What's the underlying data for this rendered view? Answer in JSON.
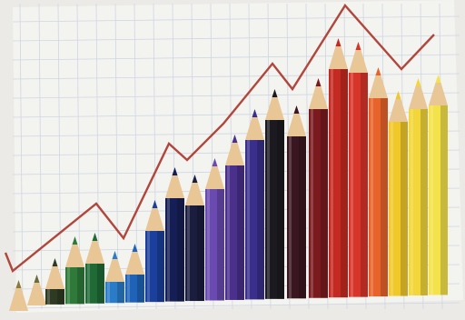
{
  "scene": {
    "paper_color": "#f3f3f0",
    "grid_color": "#cfd6e2",
    "line_color": "#b0463c",
    "wood_color": "#e8c695",
    "edge_color": "#c9c4b8"
  },
  "pencils": [
    {
      "name": "pencil-olive-1",
      "color": "#8a7a3c"
    },
    {
      "name": "pencil-olive-2",
      "color": "#6b6a3a"
    },
    {
      "name": "pencil-dark-olive",
      "color": "#2f3a22"
    },
    {
      "name": "pencil-green-1",
      "color": "#2f7a3a"
    },
    {
      "name": "pencil-green-2",
      "color": "#1f6a35"
    },
    {
      "name": "pencil-blue-1",
      "color": "#2a7cc8"
    },
    {
      "name": "pencil-blue-2",
      "color": "#1e63b8"
    },
    {
      "name": "pencil-blue-3",
      "color": "#1a3f9c"
    },
    {
      "name": "pencil-navy-1",
      "color": "#161f55"
    },
    {
      "name": "pencil-navy-2",
      "color": "#1b1d3e"
    },
    {
      "name": "pencil-violet-1",
      "color": "#6a4ab0"
    },
    {
      "name": "pencil-violet-2",
      "color": "#4a2f8c"
    },
    {
      "name": "pencil-indigo",
      "color": "#3a2f8c"
    },
    {
      "name": "pencil-black",
      "color": "#1c1a20"
    },
    {
      "name": "pencil-maroon",
      "color": "#3a1620"
    },
    {
      "name": "pencil-dark-red",
      "color": "#7a1a1e"
    },
    {
      "name": "pencil-red-1",
      "color": "#c42a22"
    },
    {
      "name": "pencil-red-2",
      "color": "#d8352a"
    },
    {
      "name": "pencil-orange",
      "color": "#e8632a"
    },
    {
      "name": "pencil-yellow-1",
      "color": "#f0c82a"
    },
    {
      "name": "pencil-yellow-2",
      "color": "#f2d63a"
    },
    {
      "name": "pencil-yellow-3",
      "color": "#f4e24a"
    }
  ]
}
